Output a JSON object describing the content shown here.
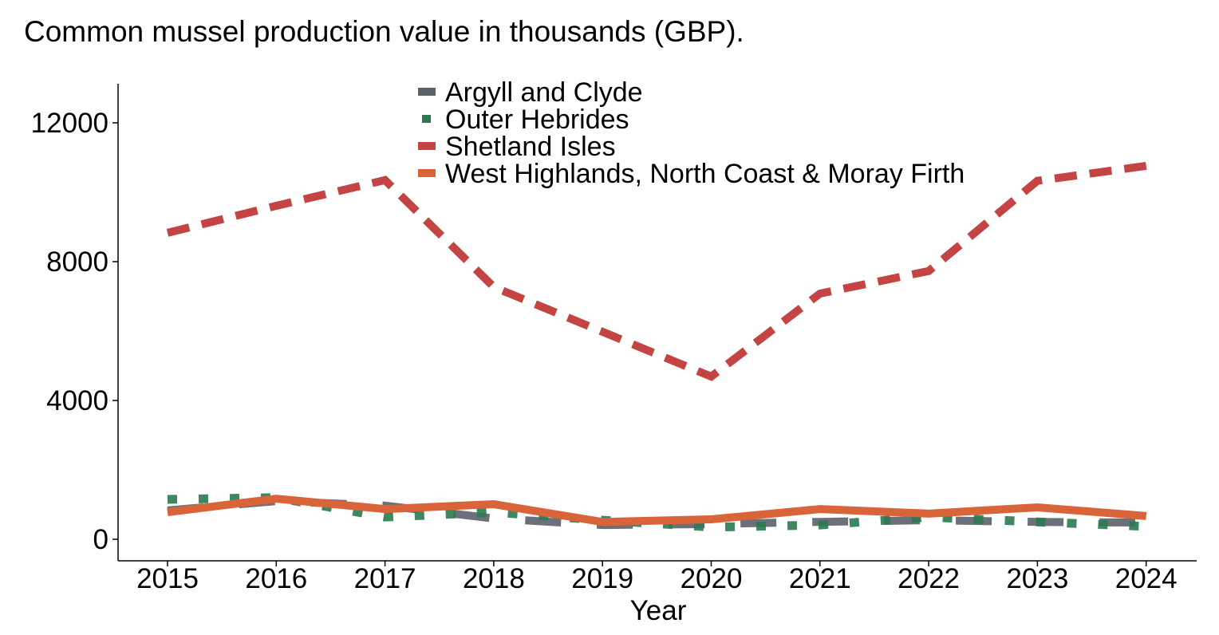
{
  "chart_data": {
    "type": "line",
    "title": "Common mussel production value in thousands (GBP).",
    "xlabel": "Year",
    "ylabel": "",
    "x": [
      2015,
      2016,
      2017,
      2018,
      2019,
      2020,
      2021,
      2022,
      2023,
      2024
    ],
    "x_tick_labels": [
      "2015",
      "2016",
      "2017",
      "2018",
      "2019",
      "2020",
      "2021",
      "2022",
      "2023",
      "2024"
    ],
    "y_ticks": [
      0,
      4000,
      8000,
      12000
    ],
    "y_tick_labels": [
      "0",
      "4000",
      "8000",
      "12000"
    ],
    "ylim": [
      -600,
      13100
    ],
    "grid": false,
    "legend_placement": "top",
    "series": [
      {
        "name": "Argyll and Clyde",
        "color": "#5b616b",
        "dash": "longdash",
        "values": [
          830,
          1100,
          970,
          600,
          410,
          440,
          500,
          550,
          500,
          480
        ]
      },
      {
        "name": "Outer Hebrides",
        "color": "#2a7a50",
        "dash": "dotted",
        "values": [
          1150,
          1200,
          640,
          780,
          550,
          350,
          410,
          640,
          500,
          370
        ]
      },
      {
        "name": "Shetland Isles",
        "color": "#c44444",
        "dash": "dashed",
        "values": [
          8830,
          9610,
          10350,
          7270,
          5980,
          4690,
          7080,
          7730,
          10330,
          10760
        ]
      },
      {
        "name": "West Highlands, North Coast & Moray Firth",
        "color": "#d9643a",
        "dash": "solid",
        "values": [
          780,
          1170,
          870,
          1010,
          500,
          575,
          870,
          740,
          920,
          670
        ]
      }
    ]
  }
}
